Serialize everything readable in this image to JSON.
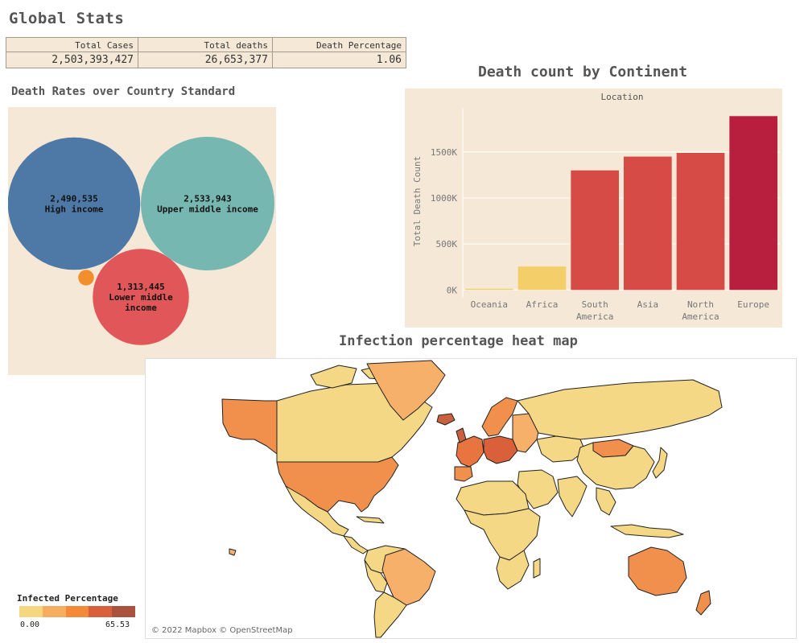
{
  "global_stats": {
    "title": "Global Stats",
    "headers": [
      "Total Cases",
      "Total deaths",
      "Death Percentage"
    ],
    "values": [
      "2,503,393,427",
      "26,653,377",
      "1.06"
    ]
  },
  "bubble_section": {
    "title": "Death Rates over Country Standard"
  },
  "bar_section": {
    "title": "Death count by Continent"
  },
  "map_section": {
    "title": "Infection percentage heat map",
    "credit": "© 2022 Mapbox © OpenStreetMap",
    "legend": {
      "title": "Infected Percentage",
      "min_label": "0.00",
      "max_label": "65.53",
      "colors": [
        "#f5d681",
        "#f6ad5f",
        "#f28a3a",
        "#d9603b",
        "#a9523d"
      ]
    }
  },
  "chart_data": [
    {
      "type": "bubble",
      "title": "Death Rates over Country Standard",
      "items": [
        {
          "value_label": "2,490,535",
          "name": "High income",
          "value": 2490535,
          "color": "#4e79a7"
        },
        {
          "value_label": "2,533,943",
          "name": "Upper middle income",
          "value": 2533943,
          "color": "#76b7b2"
        },
        {
          "value_label": "1,313,445",
          "name_lines": [
            "Lower middle",
            "income"
          ],
          "value": 1313445,
          "color": "#e15759"
        },
        {
          "value_label": "",
          "name": "",
          "value": 35000,
          "color": "#f28e2b"
        }
      ]
    },
    {
      "type": "bar",
      "title": "Death count by Continent",
      "header": "Location",
      "ylabel": "Total Death Count",
      "categories": [
        [
          "Oceania"
        ],
        [
          "Africa"
        ],
        [
          "South",
          "America"
        ],
        [
          "Asia"
        ],
        [
          "North",
          "America"
        ],
        [
          "Europe"
        ]
      ],
      "values": [
        13000,
        255000,
        1300000,
        1450000,
        1490000,
        1890000
      ],
      "colors": [
        "#f4cf69",
        "#f4cf69",
        "#d64b45",
        "#d64b45",
        "#d64b45",
        "#b81e3d"
      ],
      "yticks": [
        0,
        500000,
        1000000,
        1500000
      ],
      "ytick_labels": [
        "0K",
        "500K",
        "1000K",
        "1500K"
      ],
      "ylim": [
        -50000,
        1980000
      ],
      "grid": true
    }
  ]
}
